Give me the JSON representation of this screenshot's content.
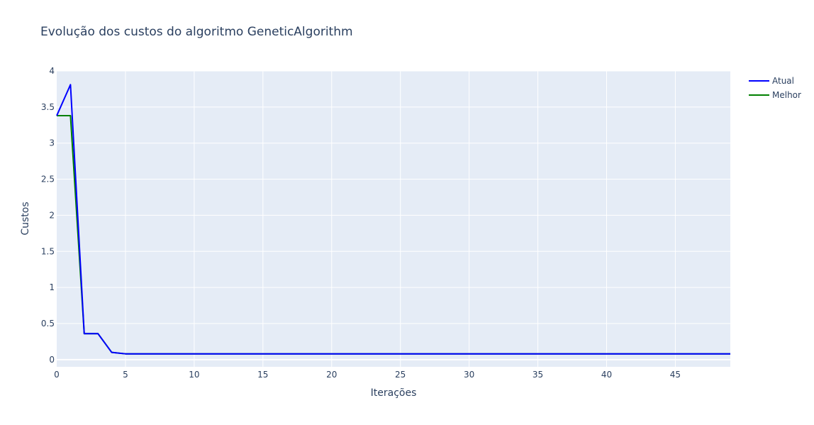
{
  "chart_data": {
    "type": "line",
    "title": "Evolução dos custos do algoritmo GeneticAlgorithm",
    "xlabel": "Iterações",
    "ylabel": "Custos",
    "xlim": [
      0,
      49
    ],
    "ylim": [
      -0.1,
      4.0
    ],
    "x_ticks": [
      0,
      5,
      10,
      15,
      20,
      25,
      30,
      35,
      40,
      45
    ],
    "y_ticks": [
      0,
      0.5,
      1,
      1.5,
      2,
      2.5,
      3,
      3.5,
      4
    ],
    "x_tick_labels": [
      "0",
      "5",
      "10",
      "15",
      "20",
      "25",
      "30",
      "35",
      "40",
      "45"
    ],
    "y_tick_labels": [
      "0",
      "0.5",
      "1",
      "1.5",
      "2",
      "2.5",
      "3",
      "3.5",
      "4"
    ],
    "grid": true,
    "legend_position": "top-right",
    "plot_background": "#e5ecf6",
    "x": [
      0,
      1,
      2,
      3,
      4,
      5,
      6,
      7,
      8,
      9,
      10,
      11,
      12,
      13,
      14,
      15,
      16,
      17,
      18,
      19,
      20,
      21,
      22,
      23,
      24,
      25,
      26,
      27,
      28,
      29,
      30,
      31,
      32,
      33,
      34,
      35,
      36,
      37,
      38,
      39,
      40,
      41,
      42,
      43,
      44,
      45,
      46,
      47,
      48,
      49
    ],
    "series": [
      {
        "name": "Atual",
        "color": "#0000ff",
        "values": [
          3.38,
          3.81,
          0.36,
          0.36,
          0.1,
          0.08,
          0.08,
          0.08,
          0.08,
          0.08,
          0.08,
          0.08,
          0.08,
          0.08,
          0.08,
          0.08,
          0.08,
          0.08,
          0.08,
          0.08,
          0.08,
          0.08,
          0.08,
          0.08,
          0.08,
          0.08,
          0.08,
          0.08,
          0.08,
          0.08,
          0.08,
          0.08,
          0.08,
          0.08,
          0.08,
          0.08,
          0.08,
          0.08,
          0.08,
          0.08,
          0.08,
          0.08,
          0.08,
          0.08,
          0.08,
          0.08,
          0.08,
          0.08,
          0.08,
          0.08
        ]
      },
      {
        "name": "Melhor",
        "color": "#008000",
        "values": [
          3.38,
          3.38,
          0.36,
          0.36,
          0.1,
          0.08,
          0.08,
          0.08,
          0.08,
          0.08,
          0.08,
          0.08,
          0.08,
          0.08,
          0.08,
          0.08,
          0.08,
          0.08,
          0.08,
          0.08,
          0.08,
          0.08,
          0.08,
          0.08,
          0.08,
          0.08,
          0.08,
          0.08,
          0.08,
          0.08,
          0.08,
          0.08,
          0.08,
          0.08,
          0.08,
          0.08,
          0.08,
          0.08,
          0.08,
          0.08,
          0.08,
          0.08,
          0.08,
          0.08,
          0.08,
          0.08,
          0.08,
          0.08,
          0.08,
          0.08
        ]
      }
    ]
  }
}
